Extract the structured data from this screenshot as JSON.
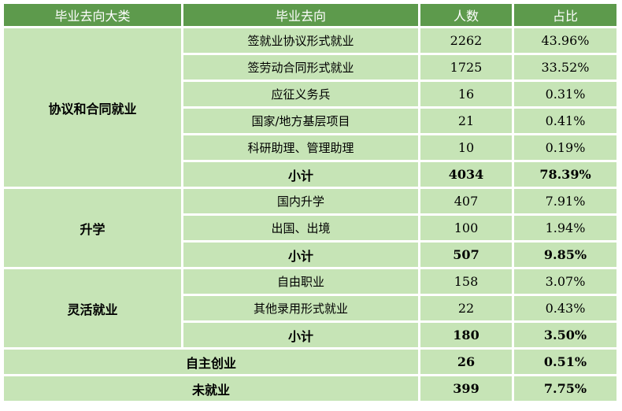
{
  "headers": [
    "毕业去向大类",
    "毕业去向",
    "人数",
    "占比"
  ],
  "groups": [
    {
      "category": "协议和合同就业",
      "rows": [
        {
          "dest": "签就业协议形式就业",
          "count": "2262",
          "pct": "43.96%"
        },
        {
          "dest": "签劳动合同形式就业",
          "count": "1725",
          "pct": "33.52%"
        },
        {
          "dest": "应征义务兵",
          "count": "16",
          "pct": "0.31%"
        },
        {
          "dest": "国家/地方基层项目",
          "count": "21",
          "pct": "0.41%"
        },
        {
          "dest": "科研助理、管理助理",
          "count": "10",
          "pct": "0.19%"
        }
      ],
      "subtotal": {
        "label": "小计",
        "count": "4034",
        "pct": "78.39%"
      }
    },
    {
      "category": "升学",
      "rows": [
        {
          "dest": "国内升学",
          "count": "407",
          "pct": "7.91%"
        },
        {
          "dest": "出国、出境",
          "count": "100",
          "pct": "1.94%"
        }
      ],
      "subtotal": {
        "label": "小计",
        "count": "507",
        "pct": "9.85%"
      }
    },
    {
      "category": "灵活就业",
      "rows": [
        {
          "dest": "自由职业",
          "count": "158",
          "pct": "3.07%"
        },
        {
          "dest": "其他录用形式就业",
          "count": "22",
          "pct": "0.43%"
        }
      ],
      "subtotal": {
        "label": "小计",
        "count": "180",
        "pct": "3.50%"
      }
    }
  ],
  "totals": [
    {
      "label": "自主创业",
      "count": "26",
      "pct": "0.51%"
    },
    {
      "label": "未就业",
      "count": "399",
      "pct": "7.75%"
    }
  ]
}
